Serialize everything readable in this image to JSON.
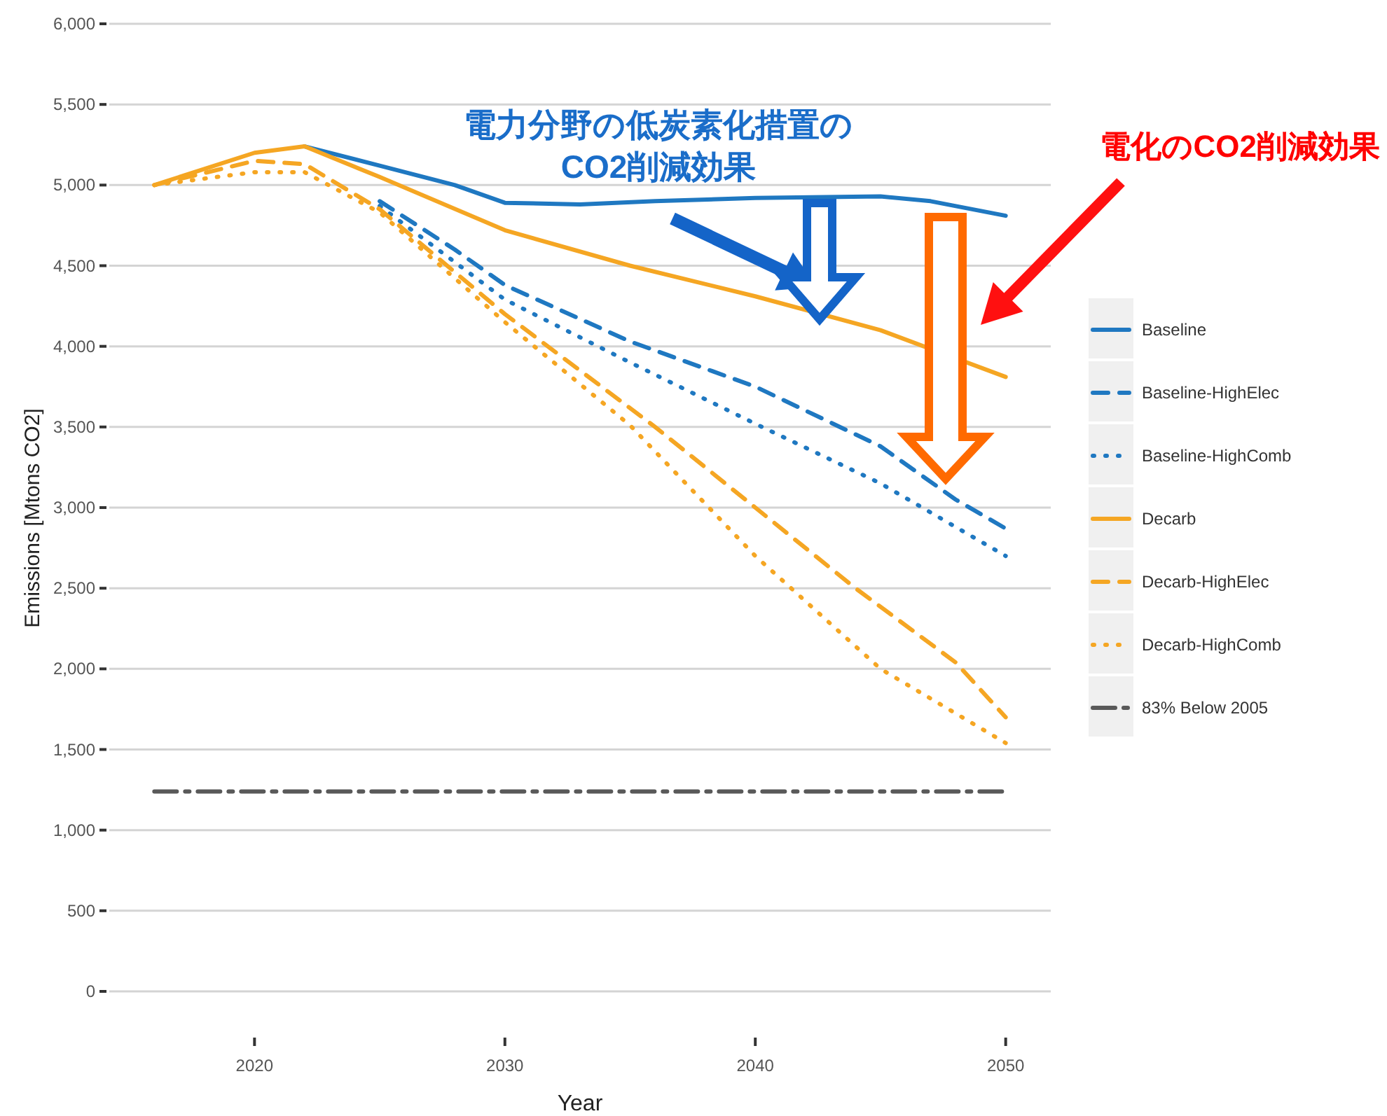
{
  "chart_data": {
    "type": "line",
    "xlabel": "Year",
    "ylabel": "Emissions [Mtons CO2]",
    "xlim": [
      2014.2,
      2051.8
    ],
    "ylim": [
      0,
      6000
    ],
    "xticks": [
      2020,
      2030,
      2040,
      2050
    ],
    "yticks": [
      0,
      500,
      {
        "value": 1000,
        "label": "1,000"
      },
      {
        "value": 1500,
        "label": "1,500"
      },
      {
        "value": 2000,
        "label": "2,000"
      },
      {
        "value": 2500,
        "label": "2,500"
      },
      {
        "value": 3000,
        "label": "3,000"
      },
      {
        "value": 3500,
        "label": "3,500"
      },
      {
        "value": 4000,
        "label": "4,000"
      },
      {
        "value": 4500,
        "label": "4,500"
      },
      {
        "value": 5000,
        "label": "5,000"
      },
      {
        "value": 5500,
        "label": "5,500"
      },
      {
        "value": 6000,
        "label": "6,000"
      }
    ],
    "grid": "y",
    "legend": "right",
    "series": [
      {
        "name": "Baseline",
        "color": "#1f78c1",
        "line_style": "solid",
        "x": [
          2022,
          2025,
          2028,
          2030,
          2033,
          2036,
          2040,
          2045,
          2047,
          2050
        ],
        "values": [
          5240,
          5120,
          5000,
          4890,
          4880,
          4900,
          4920,
          4930,
          4900,
          4810
        ]
      },
      {
        "name": "Baseline-HighElec",
        "color": "#1f78c1",
        "line_style": "dashed",
        "x": [
          2025,
          2028,
          2030,
          2035,
          2040,
          2045,
          2048,
          2050
        ],
        "values": [
          4900,
          4600,
          4380,
          4030,
          3750,
          3380,
          3050,
          2870
        ]
      },
      {
        "name": "Baseline-HighComb",
        "color": "#1f78c1",
        "line_style": "dotted",
        "x": [
          2025,
          2030,
          2035,
          2040,
          2045,
          2050
        ],
        "values": [
          4870,
          4290,
          3900,
          3520,
          3150,
          2700
        ]
      },
      {
        "name": "Decarb",
        "color": "#f5a623",
        "line_style": "solid",
        "x": [
          2016,
          2020,
          2022,
          2025,
          2030,
          2035,
          2040,
          2045,
          2050
        ],
        "values": [
          5000,
          5200,
          5240,
          5050,
          4720,
          4500,
          4310,
          4100,
          3810
        ]
      },
      {
        "name": "Decarb-HighElec",
        "color": "#f5a623",
        "line_style": "dashed",
        "x": [
          2016,
          2020,
          2022,
          2025,
          2030,
          2036,
          2040,
          2044,
          2048,
          2050
        ],
        "values": [
          5000,
          5150,
          5130,
          4850,
          4200,
          3500,
          3000,
          2500,
          2040,
          1700
        ]
      },
      {
        "name": "Decarb-HighComb",
        "color": "#f5a623",
        "line_style": "dotted",
        "x": [
          2016,
          2020,
          2022,
          2025,
          2030,
          2035,
          2040,
          2045,
          2050
        ],
        "values": [
          5000,
          5080,
          5080,
          4830,
          4150,
          3510,
          2700,
          2000,
          1540
        ]
      },
      {
        "name": "83% Below 2005",
        "color": "#595959",
        "line_style": "dashdot",
        "x": [
          2016,
          2050
        ],
        "values": [
          1240,
          1240
        ]
      }
    ],
    "annotations": [
      "電力分野の低炭素化措置の\nCO2削減効果",
      "電化のCO2削減効果"
    ]
  }
}
